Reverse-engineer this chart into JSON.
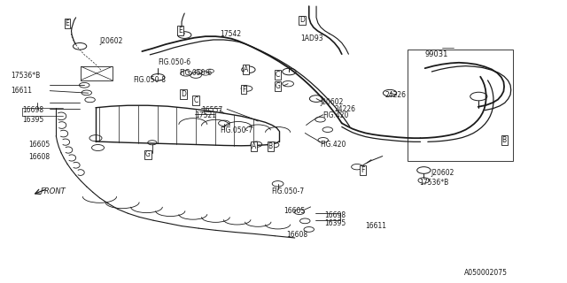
{
  "bg_color": "#ffffff",
  "line_color": "#1a1a1a",
  "fig_width": 6.4,
  "fig_height": 3.2,
  "dpi": 100,
  "labels": {
    "J20602_tl": [
      0.175,
      0.855,
      "J20602",
      false
    ],
    "17536B_l": [
      0.018,
      0.735,
      "17536*B",
      false
    ],
    "16611_l": [
      0.018,
      0.68,
      "16611",
      false
    ],
    "16698_l": [
      0.038,
      0.61,
      "16698",
      false
    ],
    "16395_l": [
      0.038,
      0.578,
      "16395",
      false
    ],
    "16605_l": [
      0.05,
      0.49,
      "16605",
      false
    ],
    "16608_l": [
      0.05,
      0.445,
      "16608",
      false
    ],
    "E1": [
      0.118,
      0.92,
      "E",
      true
    ],
    "E2": [
      0.318,
      0.895,
      "E",
      true
    ],
    "17542": [
      0.388,
      0.882,
      "17542",
      false
    ],
    "FIG050_6a": [
      0.278,
      0.78,
      "FIG.050-6",
      false
    ],
    "FIG050_6b": [
      0.315,
      0.742,
      "FIG.050-6",
      false
    ],
    "FIG050_8": [
      0.234,
      0.717,
      "FIG.050-8",
      false
    ],
    "FIG050_7a": [
      0.388,
      0.538,
      "FIG.050-7",
      false
    ],
    "FIG050_7b": [
      0.478,
      0.323,
      "FIG.050-7",
      false
    ],
    "D1": [
      0.533,
      0.93,
      "D",
      true
    ],
    "1AD93": [
      0.53,
      0.865,
      "1AD93",
      false
    ],
    "99031": [
      0.75,
      0.81,
      "99031",
      false
    ],
    "C1": [
      0.49,
      0.738,
      "C",
      true
    ],
    "G1": [
      0.49,
      0.695,
      "G",
      true
    ],
    "A1": [
      0.433,
      0.755,
      "A",
      true
    ],
    "F1": [
      0.43,
      0.685,
      "F",
      true
    ],
    "16557": [
      0.355,
      0.612,
      "16557",
      false
    ],
    "17521": [
      0.343,
      0.592,
      "17521",
      false
    ],
    "D2": [
      0.323,
      0.668,
      "D",
      true
    ],
    "C2": [
      0.345,
      0.645,
      "C",
      true
    ],
    "G2": [
      0.26,
      0.453,
      "G",
      true
    ],
    "A2": [
      0.447,
      0.483,
      "A",
      true
    ],
    "B1": [
      0.477,
      0.483,
      "B",
      true
    ],
    "J20602_r": [
      0.565,
      0.64,
      "J20602",
      false
    ],
    "24226_r1": [
      0.59,
      0.615,
      "24226",
      false
    ],
    "FIG420a": [
      0.57,
      0.592,
      "FIG.420",
      false
    ],
    "FIG420b": [
      0.565,
      0.49,
      "FIG.420",
      false
    ],
    "24226_r2": [
      0.68,
      0.665,
      "24226",
      false
    ],
    "B2": [
      0.89,
      0.505,
      "B",
      true
    ],
    "F2": [
      0.64,
      0.398,
      "F",
      true
    ],
    "J20602_br": [
      0.76,
      0.388,
      "J20602",
      false
    ],
    "17536B_br": [
      0.74,
      0.353,
      "17536*B",
      false
    ],
    "16605_b": [
      0.5,
      0.253,
      "16605",
      false
    ],
    "16698_b": [
      0.572,
      0.237,
      "16698",
      false
    ],
    "16395_b": [
      0.572,
      0.21,
      "16395",
      false
    ],
    "16611_b": [
      0.645,
      0.2,
      "16611",
      false
    ],
    "16608_b": [
      0.505,
      0.168,
      "16608",
      false
    ],
    "FRONT": [
      0.07,
      0.322,
      "FRONT",
      false
    ],
    "part_num": [
      0.82,
      0.035,
      "A050002075",
      false
    ]
  }
}
